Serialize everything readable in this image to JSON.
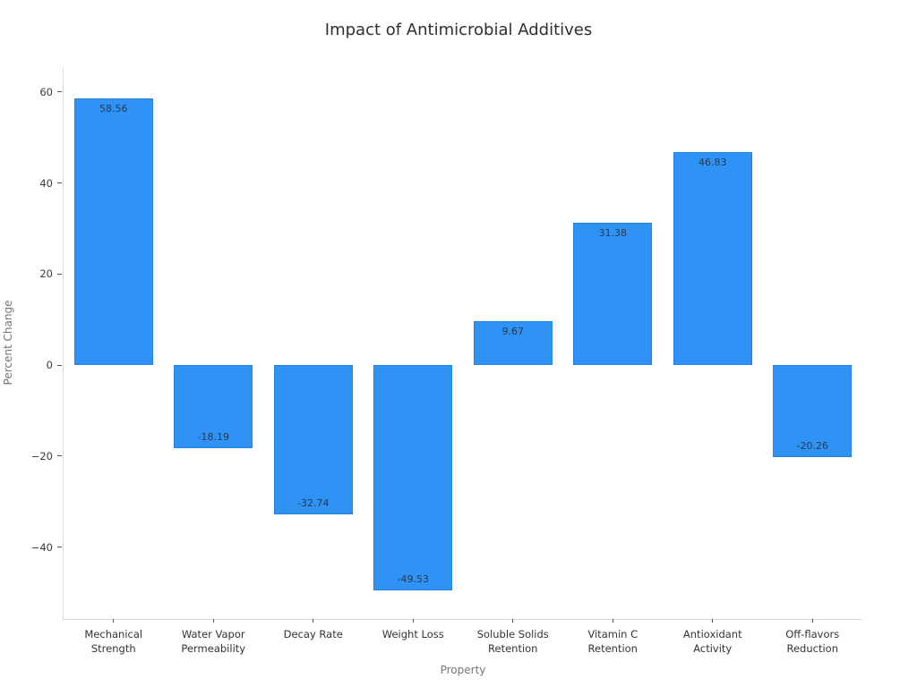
{
  "title": "Impact of Antimicrobial Additives",
  "colors": {
    "bar_fill": "#2E93F5",
    "bar_edge": "#1771C7",
    "title_text": "#2f2f2f",
    "tick_text": "#3a3a3a",
    "axis_title_text": "#757575",
    "spine": "#dcdcdc",
    "value_label_text": "#2b3a4d",
    "background": "#ffffff"
  },
  "chart_data": {
    "type": "bar",
    "title": "Impact of Antimicrobial Additives",
    "xlabel": "Property",
    "ylabel": "Percent Change",
    "categories": [
      "Mechanical\nStrength",
      "Water Vapor\nPermeability",
      "Decay Rate",
      "Weight Loss",
      "Soluble Solids\nRetention",
      "Vitamin C\nRetention",
      "Antioxidant\nActivity",
      "Off-flavors\nReduction"
    ],
    "values": [
      58.56,
      -18.19,
      -32.74,
      -49.53,
      9.67,
      31.38,
      46.83,
      -20.26
    ],
    "value_labels": [
      "58.56",
      "-18.19",
      "-32.74",
      "-49.53",
      "9.67",
      "31.38",
      "46.83",
      "-20.26"
    ],
    "yticks": [
      60,
      40,
      20,
      0,
      -20,
      -40
    ],
    "ylim": [
      -55.8,
      65.5
    ],
    "grid": false,
    "legend": "none",
    "bar_color": "#2E93F5"
  }
}
